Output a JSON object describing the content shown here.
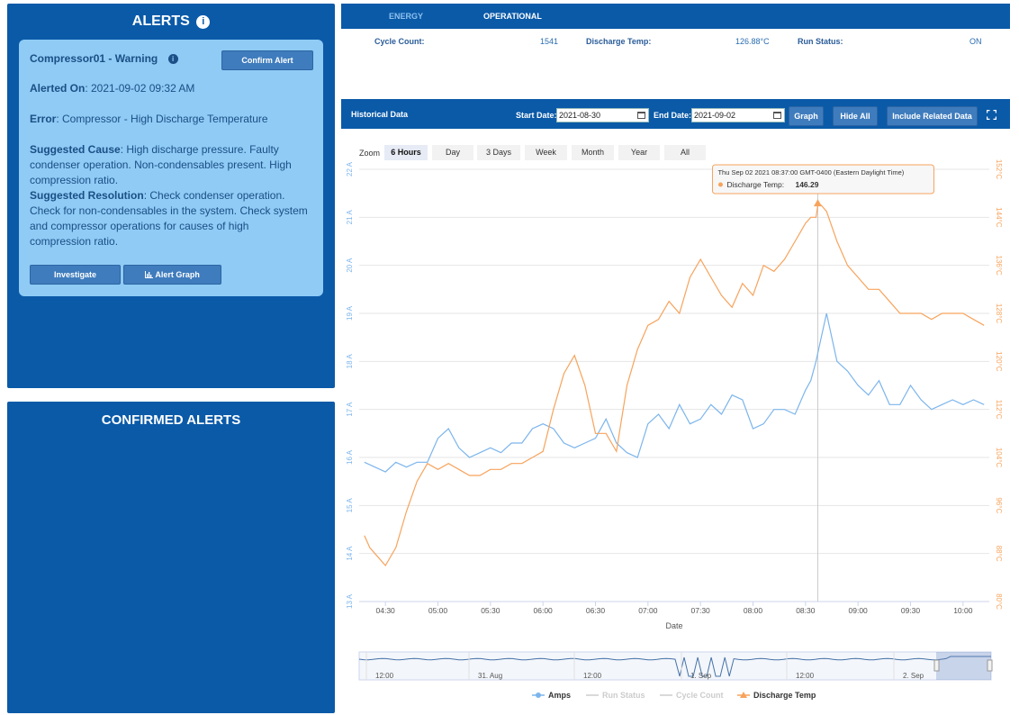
{
  "alerts": {
    "title": "ALERTS",
    "card": {
      "heading": "Compressor01 - Warning",
      "confirm_label": "Confirm Alert",
      "alerted_on_label": "Alerted On",
      "alerted_on_value": ": 2021-09-02 09:32 AM",
      "error_label": "Error",
      "error_value": ": Compressor - High Discharge Temperature",
      "cause_label": "Suggested Cause",
      "cause_value": ": High discharge pressure. Faulty condenser operation. Non-condensables present. High compression ratio.",
      "resolution_label": "Suggested Resolution",
      "resolution_value": ": Check condenser operation. Check for non-condensables in the system. Check system and compressor operations for causes of high compression ratio.",
      "investigate_label": "Investigate",
      "graph_label": "Alert Graph"
    }
  },
  "confirmed": {
    "title": "CONFIRMED ALERTS"
  },
  "tabs": {
    "energy": "ENERGY",
    "operational": "OPERATIONAL"
  },
  "stats": {
    "cycle_label": "Cycle Count:",
    "cycle_value": "1541",
    "discharge_label": "Discharge Temp:",
    "discharge_value": "126.88°C",
    "run_label": "Run Status:",
    "run_value": "ON"
  },
  "historical": {
    "title": "Historical Data",
    "start_label": "Start Date:",
    "start_value": "2021-08-30",
    "end_label": "End Date:",
    "end_value": "2021-09-02",
    "graph_label": "Graph",
    "hide_label": "Hide All",
    "related_label": "Include Related Data"
  },
  "zoom": {
    "label": "Zoom",
    "options": [
      "6 Hours",
      "Day",
      "3 Days",
      "Week",
      "Month",
      "Year",
      "All"
    ],
    "active": "6 Hours"
  },
  "tooltip": {
    "date": "Thu Sep 02 2021 08:37:00 GMT-0400 (Eastern Daylight Time)",
    "series": "Discharge Temp:",
    "value": "146.29"
  },
  "colors": {
    "amps": "#7cb5ec",
    "discharge": "#f7a35c",
    "panel": "#0a5aa8"
  },
  "chart_data": {
    "type": "line",
    "xlabel": "Date",
    "x_ticks": [
      "04:30",
      "05:00",
      "05:30",
      "06:00",
      "06:30",
      "07:00",
      "07:30",
      "08:00",
      "08:30",
      "09:00",
      "09:30",
      "10:00"
    ],
    "y_left": {
      "ylim": [
        13,
        22
      ],
      "unit": "A",
      "ticks": [
        "13 A",
        "14 A",
        "15 A",
        "16 A",
        "17 A",
        "18 A",
        "19 A",
        "20 A",
        "21 A",
        "22 A"
      ]
    },
    "y_right": {
      "ylim": [
        80,
        152
      ],
      "ticks": [
        "80°C",
        "88°C",
        "96°C",
        "104°C",
        "112°C",
        "120°C",
        "128°C",
        "136°C",
        "144°C",
        "152°C"
      ]
    },
    "legend": [
      "Amps",
      "Run Status",
      "Cycle Count",
      "Discharge Temp"
    ],
    "navigator_labels": [
      "12:00",
      "31. Aug",
      "12:00",
      "1. Sep",
      "12:00",
      "2. Sep"
    ],
    "series": [
      {
        "name": "Amps",
        "axis": "left",
        "x_hours": [
          4.3,
          4.4,
          4.5,
          4.6,
          4.7,
          4.8,
          4.9,
          5.0,
          5.1,
          5.2,
          5.3,
          5.4,
          5.5,
          5.6,
          5.7,
          5.8,
          5.9,
          6.0,
          6.1,
          6.2,
          6.3,
          6.4,
          6.5,
          6.6,
          6.7,
          6.8,
          6.9,
          7.0,
          7.1,
          7.2,
          7.3,
          7.4,
          7.5,
          7.6,
          7.7,
          7.8,
          7.9,
          8.0,
          8.1,
          8.2,
          8.3,
          8.4,
          8.5,
          8.55,
          8.6,
          8.65,
          8.7,
          8.8,
          8.9,
          9.0,
          9.1,
          9.2,
          9.3,
          9.4,
          9.5,
          9.6,
          9.7,
          9.8,
          9.9,
          10.0,
          10.1,
          10.2
        ],
        "values": [
          15.9,
          15.8,
          15.7,
          15.9,
          15.8,
          15.9,
          15.9,
          16.4,
          16.6,
          16.2,
          16.0,
          16.1,
          16.2,
          16.1,
          16.3,
          16.3,
          16.6,
          16.7,
          16.6,
          16.3,
          16.2,
          16.3,
          16.4,
          16.8,
          16.3,
          16.1,
          16.0,
          16.7,
          16.9,
          16.6,
          17.1,
          16.7,
          16.8,
          17.1,
          16.9,
          17.3,
          17.2,
          16.6,
          16.7,
          17.0,
          17.0,
          16.9,
          17.4,
          17.6,
          18.0,
          18.5,
          19.0,
          18.0,
          17.8,
          17.5,
          17.3,
          17.6,
          17.1,
          17.1,
          17.5,
          17.2,
          17.0,
          17.1,
          17.2,
          17.1,
          17.2,
          17.1
        ]
      },
      {
        "name": "Discharge Temp",
        "axis": "right",
        "x_hours": [
          4.3,
          4.35,
          4.4,
          4.45,
          4.5,
          4.6,
          4.7,
          4.8,
          4.9,
          5.0,
          5.1,
          5.2,
          5.3,
          5.4,
          5.5,
          5.6,
          5.7,
          5.8,
          5.9,
          6.0,
          6.1,
          6.2,
          6.3,
          6.4,
          6.5,
          6.6,
          6.7,
          6.8,
          6.9,
          7.0,
          7.1,
          7.2,
          7.3,
          7.4,
          7.5,
          7.6,
          7.7,
          7.8,
          7.9,
          8.0,
          8.1,
          8.2,
          8.3,
          8.4,
          8.5,
          8.55,
          8.6,
          8.62,
          8.65,
          8.7,
          8.8,
          8.9,
          9.0,
          9.1,
          9.2,
          9.3,
          9.4,
          9.5,
          9.6,
          9.7,
          9.8,
          9.9,
          10.0,
          10.1,
          10.2
        ],
        "values": [
          91,
          89,
          88,
          87,
          86,
          89,
          95,
          100,
          103,
          102,
          103,
          102,
          101,
          101,
          102,
          102,
          103,
          103,
          104,
          105,
          112,
          118,
          121,
          116,
          108,
          108,
          105,
          116,
          122,
          126,
          127,
          130,
          128,
          134,
          137,
          134,
          131,
          129,
          133,
          131,
          136,
          135,
          137,
          140,
          143,
          144,
          144,
          146.29,
          146,
          145,
          140,
          136,
          134,
          132,
          132,
          130,
          128,
          128,
          128,
          127,
          128,
          128,
          128,
          127,
          126
        ]
      }
    ],
    "tooltip_point": {
      "x_hours": 8.617,
      "value": 146.29
    }
  }
}
